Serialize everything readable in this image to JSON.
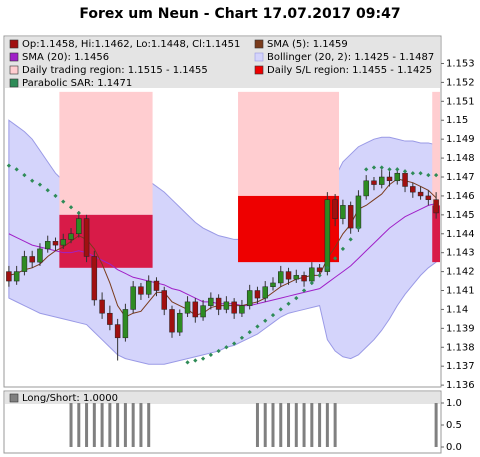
{
  "chart_data": [
    {
      "type": "candlestick",
      "title": "Forex um Neun - Chart 17.07.2017 09:47",
      "ylim": [
        1.1359,
        1.1544
      ],
      "yticks": [
        1.136,
        1.137,
        1.138,
        1.139,
        1.14,
        1.141,
        1.142,
        1.143,
        1.144,
        1.145,
        1.146,
        1.147,
        1.148,
        1.149,
        1.15,
        1.151,
        1.152,
        1.153
      ],
      "candles": {
        "name": "Op:1.1458, Hi:1.1462, Lo:1.1448, Cl:1.1451",
        "up_color": "#2e8b22",
        "down_color": "#a01010",
        "values": [
          [
            1.142,
            1.1423,
            1.1412,
            1.1415
          ],
          [
            1.1415,
            1.1423,
            1.1413,
            1.142
          ],
          [
            1.142,
            1.1431,
            1.1418,
            1.1428
          ],
          [
            1.1428,
            1.1431,
            1.1422,
            1.1425
          ],
          [
            1.1425,
            1.1435,
            1.1423,
            1.1432
          ],
          [
            1.1432,
            1.1439,
            1.143,
            1.1436
          ],
          [
            1.1436,
            1.1438,
            1.1431,
            1.1434
          ],
          [
            1.1434,
            1.144,
            1.1432,
            1.1437
          ],
          [
            1.1437,
            1.1443,
            1.1435,
            1.144
          ],
          [
            1.144,
            1.1452,
            1.1438,
            1.1448
          ],
          [
            1.1448,
            1.145,
            1.1425,
            1.1428
          ],
          [
            1.1428,
            1.1431,
            1.1402,
            1.1405
          ],
          [
            1.1405,
            1.1409,
            1.1395,
            1.1398
          ],
          [
            1.1398,
            1.1402,
            1.1389,
            1.1392
          ],
          [
            1.1392,
            1.1395,
            1.1373,
            1.1385
          ],
          [
            1.1385,
            1.1403,
            1.1383,
            1.14
          ],
          [
            1.14,
            1.1415,
            1.1398,
            1.1412
          ],
          [
            1.1412,
            1.1414,
            1.1405,
            1.1408
          ],
          [
            1.1408,
            1.1418,
            1.1406,
            1.1415
          ],
          [
            1.1415,
            1.1417,
            1.1407,
            1.141
          ],
          [
            1.141,
            1.1412,
            1.1397,
            1.14
          ],
          [
            1.14,
            1.1402,
            1.1385,
            1.1388
          ],
          [
            1.1388,
            1.14,
            1.1386,
            1.1398
          ],
          [
            1.1398,
            1.1407,
            1.1396,
            1.1404
          ],
          [
            1.1404,
            1.1406,
            1.1393,
            1.1396
          ],
          [
            1.1396,
            1.1405,
            1.1394,
            1.1402
          ],
          [
            1.1402,
            1.1409,
            1.14,
            1.1406
          ],
          [
            1.1406,
            1.1408,
            1.1397,
            1.14
          ],
          [
            1.14,
            1.1407,
            1.1398,
            1.1404
          ],
          [
            1.1404,
            1.1406,
            1.1395,
            1.1398
          ],
          [
            1.1398,
            1.1405,
            1.1396,
            1.1402
          ],
          [
            1.1402,
            1.1413,
            1.14,
            1.141
          ],
          [
            1.141,
            1.1412,
            1.1403,
            1.1406
          ],
          [
            1.1406,
            1.1415,
            1.1404,
            1.1412
          ],
          [
            1.1412,
            1.1417,
            1.141,
            1.1414
          ],
          [
            1.1414,
            1.1423,
            1.1412,
            1.142
          ],
          [
            1.142,
            1.1422,
            1.1413,
            1.1416
          ],
          [
            1.1416,
            1.1421,
            1.1414,
            1.1418
          ],
          [
            1.1418,
            1.142,
            1.1412,
            1.1415
          ],
          [
            1.1415,
            1.1425,
            1.1413,
            1.1422
          ],
          [
            1.1422,
            1.1424,
            1.1417,
            1.142
          ],
          [
            1.142,
            1.1462,
            1.1418,
            1.1458
          ],
          [
            1.1458,
            1.1461,
            1.1444,
            1.1448
          ],
          [
            1.1448,
            1.1458,
            1.1445,
            1.1455
          ],
          [
            1.1455,
            1.1457,
            1.144,
            1.1443
          ],
          [
            1.1443,
            1.1463,
            1.1441,
            1.146
          ],
          [
            1.146,
            1.1471,
            1.1458,
            1.1468
          ],
          [
            1.1468,
            1.147,
            1.1463,
            1.1466
          ],
          [
            1.1466,
            1.1474,
            1.1464,
            1.147
          ],
          [
            1.147,
            1.1473,
            1.1465,
            1.1468
          ],
          [
            1.1468,
            1.1475,
            1.1466,
            1.1472
          ],
          [
            1.1472,
            1.1474,
            1.1462,
            1.1465
          ],
          [
            1.1465,
            1.1467,
            1.1459,
            1.1462
          ],
          [
            1.1462,
            1.1465,
            1.1458,
            1.146
          ],
          [
            1.146,
            1.1463,
            1.1455,
            1.1458
          ],
          [
            1.1458,
            1.1462,
            1.1448,
            1.1451
          ]
        ]
      },
      "sma5": {
        "name": "SMA (5): 1.1459",
        "color": "#7a3b1c",
        "values": [
          1.1418,
          1.1419,
          1.1421,
          1.1422,
          1.1424,
          1.1428,
          1.1431,
          1.1433,
          1.1436,
          1.1439,
          1.1437,
          1.1432,
          1.1424,
          1.1414,
          1.1402,
          1.1396,
          1.1398,
          1.1399,
          1.1404,
          1.1409,
          1.1409,
          1.1404,
          1.1402,
          1.14,
          1.1397,
          1.1398,
          1.1401,
          1.1402,
          1.1402,
          1.1402,
          1.1402,
          1.1403,
          1.1404,
          1.1406,
          1.1409,
          1.1412,
          1.1414,
          1.1416,
          1.1417,
          1.1418,
          1.1418,
          1.1427,
          1.1433,
          1.144,
          1.1445,
          1.1453,
          1.1455,
          1.1458,
          1.1461,
          1.1466,
          1.1469,
          1.1468,
          1.1467,
          1.1465,
          1.1463,
          1.1459
        ]
      },
      "sma20": {
        "name": "SMA (20): 1.1456",
        "color": "#a020c8",
        "values": [
          1.144,
          1.1438,
          1.1436,
          1.1434,
          1.1433,
          1.1432,
          1.1431,
          1.143,
          1.143,
          1.1431,
          1.143,
          1.1428,
          1.1426,
          1.1424,
          1.1421,
          1.1419,
          1.1417,
          1.1416,
          1.1415,
          1.1414,
          1.1413,
          1.1411,
          1.141,
          1.1408,
          1.1406,
          1.1404,
          1.1404,
          1.1403,
          1.1403,
          1.1403,
          1.1402,
          1.1402,
          1.1403,
          1.1404,
          1.1405,
          1.1406,
          1.1407,
          1.1408,
          1.1409,
          1.141,
          1.1411,
          1.1414,
          1.1417,
          1.142,
          1.1423,
          1.1427,
          1.1431,
          1.1435,
          1.1439,
          1.1443,
          1.1446,
          1.1449,
          1.1451,
          1.1453,
          1.1455,
          1.1456
        ]
      },
      "bollinger": {
        "name": "Bollinger (20, 2): 1.1425 - 1.1487",
        "color": "#9a9ae6",
        "fill": "#d4d4fb",
        "upper": [
          1.15,
          1.1497,
          1.1494,
          1.149,
          1.1484,
          1.1478,
          1.1472,
          1.1468,
          1.1466,
          1.1466,
          1.1467,
          1.147,
          1.1472,
          1.1474,
          1.1475,
          1.1474,
          1.1472,
          1.147,
          1.1468,
          1.1465,
          1.1462,
          1.1458,
          1.1454,
          1.145,
          1.1446,
          1.1443,
          1.1441,
          1.1439,
          1.1438,
          1.1437,
          1.1437,
          1.1436,
          1.1434,
          1.1432,
          1.1431,
          1.143,
          1.143,
          1.1431,
          1.1433,
          1.1436,
          1.144,
          1.146,
          1.147,
          1.1478,
          1.1482,
          1.1486,
          1.1488,
          1.149,
          1.1491,
          1.1491,
          1.149,
          1.1489,
          1.1489,
          1.1488,
          1.1488,
          1.1487
        ],
        "lower": [
          1.1406,
          1.1404,
          1.1402,
          1.14,
          1.1398,
          1.1397,
          1.1396,
          1.1395,
          1.1394,
          1.1393,
          1.1392,
          1.1388,
          1.1384,
          1.138,
          1.1376,
          1.1374,
          1.1373,
          1.1372,
          1.1371,
          1.1371,
          1.1371,
          1.1372,
          1.1373,
          1.1374,
          1.1375,
          1.1376,
          1.1377,
          1.1378,
          1.138,
          1.1381,
          1.1383,
          1.1385,
          1.1387,
          1.139,
          1.1393,
          1.1396,
          1.1398,
          1.1399,
          1.14,
          1.1401,
          1.1402,
          1.1384,
          1.1378,
          1.1375,
          1.1374,
          1.1376,
          1.138,
          1.1384,
          1.1389,
          1.1395,
          1.1402,
          1.1408,
          1.1413,
          1.1418,
          1.1422,
          1.1425
        ]
      },
      "trading_region": {
        "name": "Daily trading region: 1.1515 - 1.1455",
        "color": "#ffcdd0",
        "spans": [
          {
            "start": 7,
            "end": 18,
            "values": [
              1.1515,
              1.145
            ]
          },
          {
            "start": 30,
            "end": 42,
            "values": [
              1.1515,
              1.146
            ]
          },
          {
            "start": 55,
            "end": 55,
            "values": [
              1.1515,
              1.1455
            ]
          }
        ]
      },
      "sl_region": {
        "name": "Daily S/L region: 1.1455 - 1.1425",
        "color": "#ee0000",
        "spans": [
          {
            "start": 7,
            "end": 18,
            "values": [
              1.145,
              1.1422
            ],
            "color": "#d81b48"
          },
          {
            "start": 30,
            "end": 42,
            "values": [
              1.146,
              1.1425
            ],
            "color": "#ee0000"
          },
          {
            "start": 55,
            "end": 55,
            "values": [
              1.1455,
              1.1425
            ],
            "color": "#d81b48"
          }
        ]
      },
      "sar": {
        "name": "Parabolic SAR: 1.1471",
        "color": "#2e8b57",
        "values": [
          1.1476,
          1.1474,
          1.1471,
          1.1468,
          1.1466,
          1.1463,
          1.146,
          1.1457,
          1.1454,
          1.1451,
          null,
          null,
          null,
          null,
          null,
          null,
          null,
          null,
          null,
          null,
          null,
          null,
          null,
          1.1372,
          1.1373,
          1.1374,
          1.1376,
          1.1378,
          1.138,
          1.1382,
          1.1385,
          1.1388,
          1.1391,
          1.1394,
          1.1397,
          1.14,
          1.1403,
          1.1406,
          1.141,
          1.1414,
          1.1418,
          1.1422,
          1.1427,
          1.1432,
          1.1437,
          1.1443,
          1.1474,
          1.1475,
          1.1475,
          1.1474,
          1.1474,
          1.1473,
          1.1472,
          1.1472,
          1.1471,
          1.1471
        ]
      }
    },
    {
      "type": "bar",
      "name": "Long/Short: 1.0000",
      "color": "#808080",
      "ylim": [
        0,
        1
      ],
      "yticks": [
        {
          "value": 0,
          "label": "0.0"
        },
        {
          "value": 0.5,
          "label": "0.5"
        },
        {
          "value": 1,
          "label": "1.0"
        }
      ],
      "values": [
        0,
        0,
        0,
        0,
        0,
        0,
        0,
        0,
        1,
        1,
        1,
        1,
        1,
        1,
        1,
        1,
        1,
        1,
        1,
        0,
        0,
        0,
        0,
        0,
        0,
        0,
        0,
        0,
        0,
        0,
        0,
        0,
        1,
        1,
        1,
        1,
        1,
        1,
        1,
        1,
        1,
        1,
        1,
        0,
        0,
        0,
        0,
        0,
        0,
        0,
        0,
        0,
        0,
        0,
        0,
        1
      ]
    }
  ]
}
